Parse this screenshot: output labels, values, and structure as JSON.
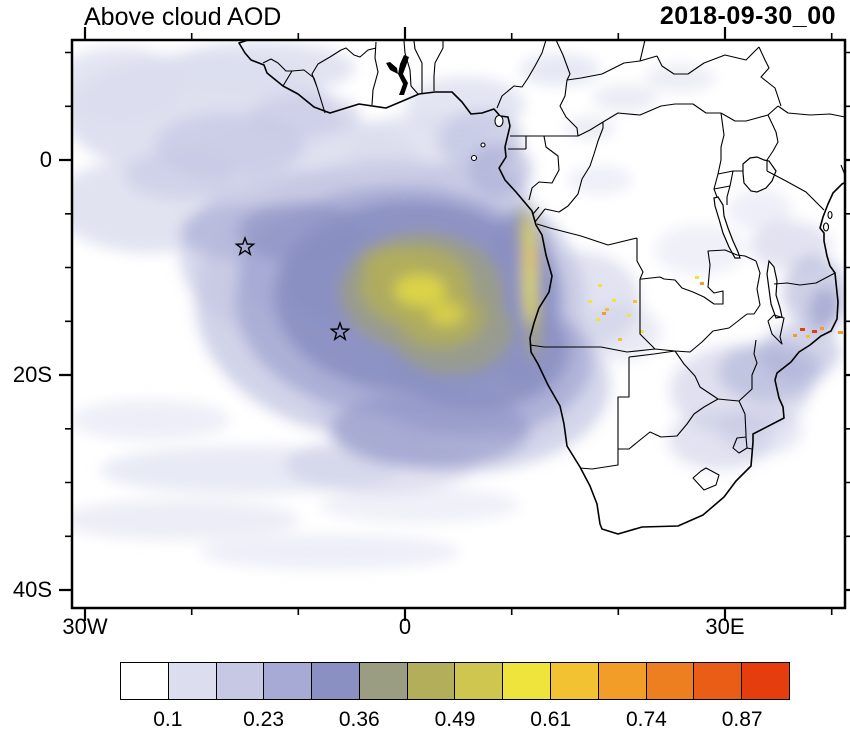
{
  "header": {
    "title": "Above cloud AOD",
    "date": "2018-09-30_00"
  },
  "axes": {
    "x_ticks": [
      {
        "label": "30W"
      },
      {
        "label": "0"
      },
      {
        "label": "30E"
      }
    ],
    "y_ticks": [
      {
        "label": "0"
      },
      {
        "label": "20S"
      },
      {
        "label": "40S"
      }
    ]
  },
  "colorbar": {
    "colors": [
      "#ffffff",
      "#dcdeef",
      "#c6c8e4",
      "#a6aad4",
      "#8b90c2",
      "#9b9d83",
      "#b2ae59",
      "#cfc64f",
      "#eee43c",
      "#f2c232",
      "#f19d28",
      "#ee7f20",
      "#ea5d17",
      "#e63d0e"
    ],
    "tick_labels": [
      "0.1",
      "0.23",
      "0.36",
      "0.49",
      "0.61",
      "0.74",
      "0.87"
    ]
  },
  "chart_data": {
    "type": "heatmap",
    "title": "Above cloud AOD",
    "time": "2018-09-30_00",
    "variable": "above-cloud aerosol optical depth (AOD)",
    "projection": "equirectangular lat-lon map of Africa and the South Atlantic",
    "lon_range_deg": [
      -31,
      41
    ],
    "lat_range_deg": [
      -41.5,
      11
    ],
    "x_tick_labels": [
      "30W",
      "0",
      "30E"
    ],
    "y_tick_labels": [
      "0",
      "20S",
      "40S"
    ],
    "grid": false,
    "legend_position": "horizontal colorbar below map",
    "colorbar_tick_values": [
      0.1,
      0.23,
      0.36,
      0.49,
      0.61,
      0.74,
      0.87
    ],
    "colorbar_n_cells": 14,
    "colorbar_cell_width_estimate": 0.065,
    "markers": [
      {
        "symbol": "open-star",
        "lon_deg": -14.4,
        "lat_deg": -7.9
      },
      {
        "symbol": "open-star",
        "lon_deg": -5.7,
        "lat_deg": -15.9
      }
    ],
    "features": [
      {
        "name": "main biomass-burning smoke plume over SE Atlantic stratocumulus deck",
        "extent": "12W-14E, 2S-25S",
        "aod_range": [
          0.2,
          0.55
        ]
      },
      {
        "name": "plume core",
        "extent": "4W-7E, 7S-18S",
        "aod_range": [
          0.4,
          0.6
        ]
      },
      {
        "name": "coastal maximum streaks just offshore Angola",
        "extent": "10E-13E, 5S-18S",
        "aod_range": [
          0.5,
          0.75
        ]
      },
      {
        "name": "scattered thin aerosol, tropical North Atlantic",
        "extent": "31W-5W, 0-11N",
        "aod_range": [
          0.1,
          0.25
        ]
      },
      {
        "name": "isolated fire hotspots over E Angola / Zambia",
        "extent": "17E-23E, 10S-17S",
        "aod_range": [
          0.5,
          0.8
        ]
      },
      {
        "name": "fire hotspots near S Malawi / N Mozambique",
        "extent": "36E-41E, 15S-17S",
        "aod_range": [
          0.7,
          0.95
        ]
      },
      {
        "name": "thin aerosol patches over SE Africa and Mozambique Channel",
        "extent": "28E-41E, 10S-28S",
        "aod_range": [
          0.1,
          0.3
        ]
      },
      {
        "name": "mostly clear ocean",
        "extent": "South Atlantic south of ~27S",
        "aod_range": [
          0,
          0.1
        ]
      }
    ]
  }
}
